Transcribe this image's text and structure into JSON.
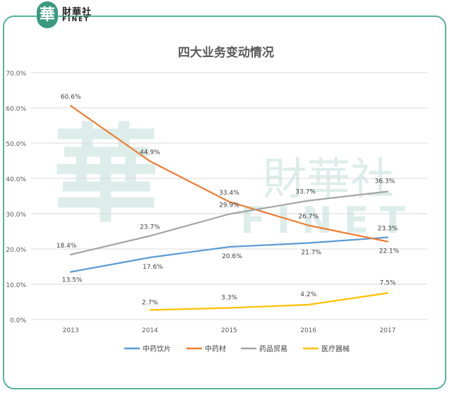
{
  "logo": {
    "mark": "華",
    "name_cn": "財華社",
    "name_en": "FINET"
  },
  "watermark": {
    "mark": "華",
    "cn": "財華社",
    "en": "FINET"
  },
  "chart_data": {
    "type": "line",
    "title": "四大业务变动情况",
    "categories": [
      "2013",
      "2014",
      "2015",
      "2016",
      "2017"
    ],
    "ylim": [
      0,
      70
    ],
    "yticks": [
      "0.0%",
      "10.0%",
      "20.0%",
      "30.0%",
      "40.0%",
      "50.0%",
      "60.0%",
      "70.0%"
    ],
    "series": [
      {
        "name": "中药饮片",
        "color": "#5b9bd5",
        "values": [
          13.5,
          17.6,
          20.6,
          21.7,
          23.3
        ],
        "labels": [
          "13.5%",
          "17.6%",
          "20.6%",
          "21.7%",
          "23.3%"
        ]
      },
      {
        "name": "中药材",
        "color": "#ed7d31",
        "values": [
          60.6,
          44.9,
          33.4,
          26.7,
          22.1
        ],
        "labels": [
          "60.6%",
          "44.9%",
          "33.4%",
          "26.7%",
          "22.1%"
        ]
      },
      {
        "name": "药品贸易",
        "color": "#a5a5a5",
        "values": [
          18.4,
          23.7,
          29.9,
          33.7,
          36.3
        ],
        "labels": [
          "18.4%",
          "23.7%",
          "29.9%",
          "33.7%",
          "36.3%"
        ]
      },
      {
        "name": "医疗器械",
        "color": "#ffc000",
        "values": [
          null,
          2.7,
          3.3,
          4.2,
          7.5
        ],
        "labels": [
          "",
          "2.7%",
          "3.3%",
          "4.2%",
          "7.5%"
        ]
      }
    ],
    "legend": "bottom"
  }
}
